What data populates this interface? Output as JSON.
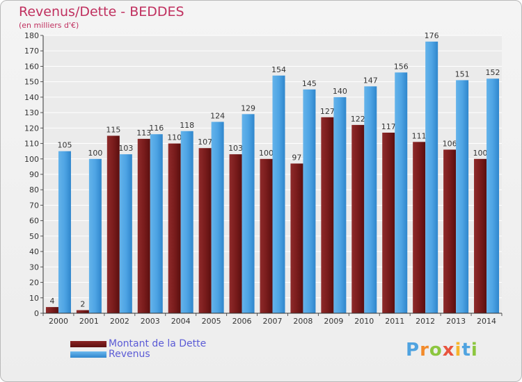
{
  "chart_data": {
    "type": "bar",
    "title": "Revenus/Dette - BEDDES",
    "subtitle": "(en milliers d'€)",
    "categories": [
      "2000",
      "2001",
      "2002",
      "2003",
      "2004",
      "2005",
      "2006",
      "2007",
      "2008",
      "2009",
      "2010",
      "2011",
      "2012",
      "2013",
      "2014"
    ],
    "series": [
      {
        "name": "Montant de la Dette",
        "color": "#7a1c1c",
        "values": [
          4,
          2,
          115,
          113,
          110,
          107,
          103,
          100,
          97,
          127,
          122,
          117,
          111,
          106,
          100
        ]
      },
      {
        "name": "Revenus",
        "color": "#4ea4e4",
        "values": [
          105,
          100,
          103,
          116,
          118,
          124,
          129,
          154,
          145,
          140,
          147,
          156,
          176,
          151,
          152
        ]
      }
    ],
    "ylim": [
      0,
      180
    ],
    "yticks": [
      0,
      10,
      20,
      30,
      40,
      50,
      60,
      70,
      80,
      90,
      100,
      110,
      120,
      130,
      140,
      150,
      160,
      170,
      180
    ],
    "grid": true,
    "legend": "bottom-left"
  },
  "logo": {
    "letters": [
      "P",
      "r",
      "o",
      "x",
      "i",
      "t",
      "i"
    ],
    "colors": [
      "#4fa3e0",
      "#f28a2a",
      "#8cc63f",
      "#e8543e",
      "#f7b52c",
      "#4fa3e0",
      "#8cc63f"
    ]
  }
}
